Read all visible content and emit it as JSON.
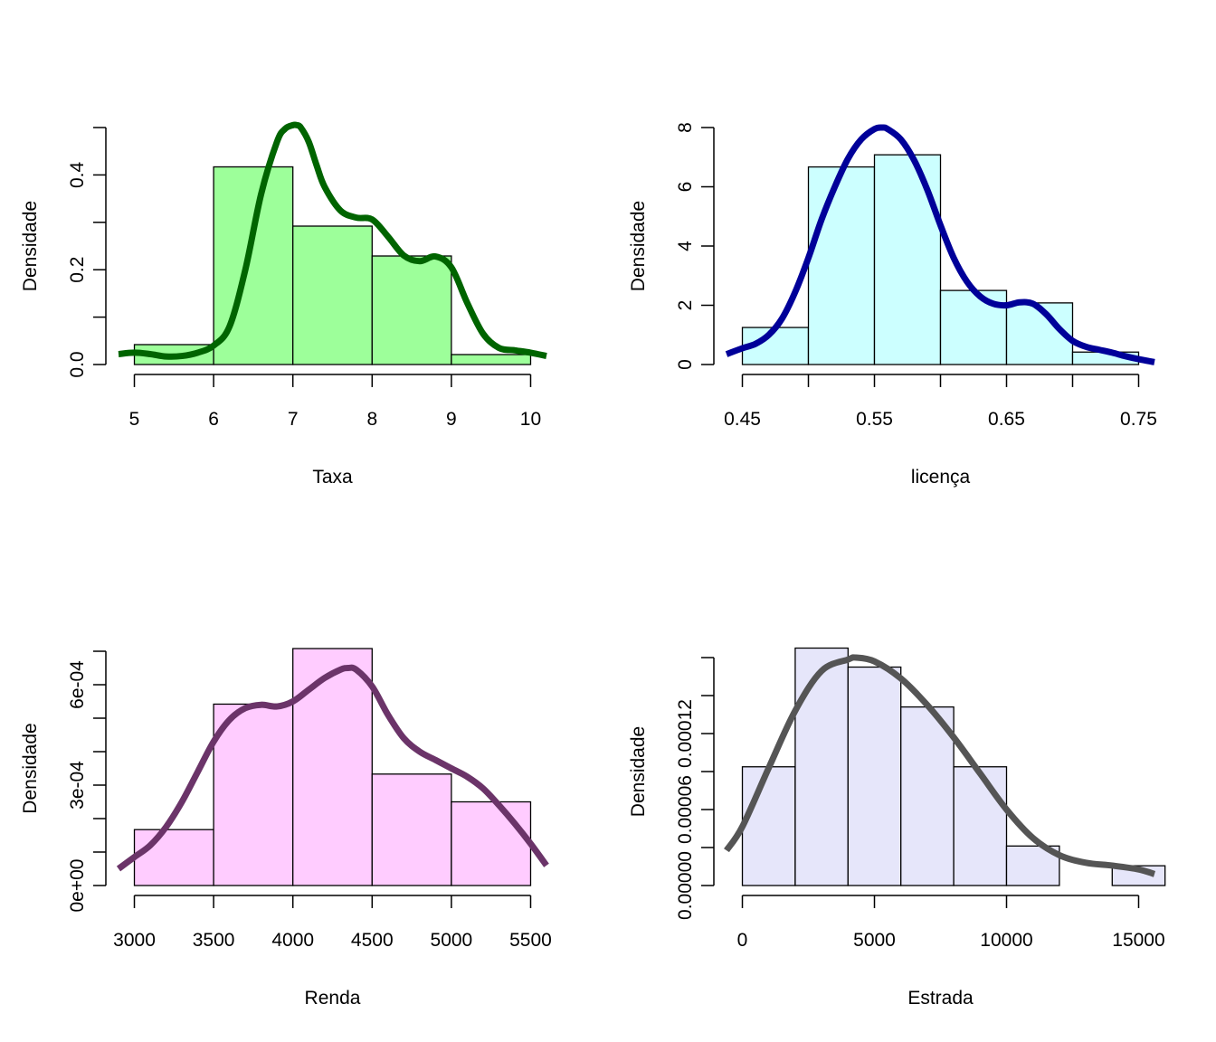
{
  "chart_data": [
    {
      "type": "bar",
      "subtype": "histogram-with-density",
      "xlabel": "Taxa",
      "ylabel": "Densidade",
      "bar_color": "#9dff9a",
      "line_color": "#006400",
      "xlim": [
        4.8,
        10.2
      ],
      "ylim": [
        0,
        0.5
      ],
      "x_ticks": [
        5,
        6,
        7,
        8,
        9,
        10
      ],
      "x_tick_labels": [
        "5",
        "6",
        "7",
        "8",
        "9",
        "10"
      ],
      "y_ticks": [
        0,
        0.1,
        0.2,
        0.3,
        0.4,
        0.5
      ],
      "y_tick_labels": [
        "0.0",
        "",
        "0.2",
        "",
        "0.4",
        ""
      ],
      "bins": [
        {
          "x0": 5,
          "x1": 6,
          "value": 0.042
        },
        {
          "x0": 6,
          "x1": 7,
          "value": 0.417
        },
        {
          "x0": 7,
          "x1": 8,
          "value": 0.292
        },
        {
          "x0": 8,
          "x1": 9,
          "value": 0.229
        },
        {
          "x0": 9,
          "x1": 10,
          "value": 0.021
        }
      ],
      "density": {
        "x": [
          4.8,
          5.0,
          5.2,
          5.4,
          5.6,
          5.8,
          6.0,
          6.2,
          6.4,
          6.6,
          6.8,
          6.9,
          7.0,
          7.05,
          7.1,
          7.2,
          7.3,
          7.4,
          7.6,
          7.8,
          8.0,
          8.2,
          8.4,
          8.6,
          8.8,
          9.0,
          9.2,
          9.4,
          9.6,
          9.8,
          10.0,
          10.2
        ],
        "y": [
          0.022,
          0.025,
          0.022,
          0.017,
          0.018,
          0.025,
          0.04,
          0.08,
          0.2,
          0.36,
          0.47,
          0.497,
          0.505,
          0.505,
          0.5,
          0.47,
          0.42,
          0.375,
          0.325,
          0.31,
          0.306,
          0.27,
          0.23,
          0.218,
          0.228,
          0.205,
          0.13,
          0.065,
          0.035,
          0.03,
          0.025,
          0.018
        ]
      }
    },
    {
      "type": "bar",
      "subtype": "histogram-with-density",
      "xlabel": "licença",
      "ylabel": "Densidade",
      "bar_color": "#ccffff",
      "line_color": "#000099",
      "xlim": [
        0.438,
        0.762
      ],
      "ylim": [
        0,
        8
      ],
      "x_ticks": [
        0.45,
        0.5,
        0.55,
        0.6,
        0.65,
        0.7,
        0.75
      ],
      "x_tick_labels": [
        "0.45",
        "",
        "0.55",
        "",
        "0.65",
        "",
        "0.75"
      ],
      "y_ticks": [
        0,
        2,
        4,
        6,
        8
      ],
      "y_tick_labels": [
        "0",
        "2",
        "4",
        "6",
        "8"
      ],
      "bins": [
        {
          "x0": 0.45,
          "x1": 0.5,
          "value": 1.25
        },
        {
          "x0": 0.5,
          "x1": 0.55,
          "value": 6.67
        },
        {
          "x0": 0.55,
          "x1": 0.6,
          "value": 7.08
        },
        {
          "x0": 0.6,
          "x1": 0.65,
          "value": 2.5
        },
        {
          "x0": 0.65,
          "x1": 0.7,
          "value": 2.08
        },
        {
          "x0": 0.7,
          "x1": 0.75,
          "value": 0.42
        }
      ],
      "density": {
        "x": [
          0.438,
          0.45,
          0.46,
          0.47,
          0.48,
          0.49,
          0.5,
          0.51,
          0.52,
          0.53,
          0.54,
          0.55,
          0.556,
          0.56,
          0.57,
          0.58,
          0.59,
          0.6,
          0.61,
          0.62,
          0.63,
          0.64,
          0.65,
          0.66,
          0.67,
          0.68,
          0.69,
          0.7,
          0.71,
          0.72,
          0.73,
          0.74,
          0.75,
          0.762
        ],
        "y": [
          0.35,
          0.55,
          0.7,
          1.0,
          1.55,
          2.45,
          3.6,
          4.9,
          6.0,
          6.95,
          7.6,
          7.95,
          8.0,
          7.95,
          7.6,
          6.9,
          5.9,
          4.7,
          3.6,
          2.8,
          2.3,
          2.05,
          2.0,
          2.1,
          2.05,
          1.7,
          1.2,
          0.8,
          0.6,
          0.5,
          0.4,
          0.28,
          0.18,
          0.08
        ]
      }
    },
    {
      "type": "bar",
      "subtype": "histogram-with-density",
      "xlabel": "Renda",
      "ylabel": "Densidade",
      "bar_color": "#ffccff",
      "line_color": "#6b3469",
      "xlim": [
        2900,
        5600
      ],
      "ylim": [
        0,
        0.0007
      ],
      "x_ticks": [
        3000,
        3500,
        4000,
        4500,
        5000,
        5500
      ],
      "x_tick_labels": [
        "3000",
        "3500",
        "4000",
        "4500",
        "5000",
        "5500"
      ],
      "y_ticks": [
        0,
        0.0001,
        0.0002,
        0.0003,
        0.0004,
        0.0005,
        0.0006,
        0.0007
      ],
      "y_tick_labels": [
        "0e+00",
        "",
        "",
        "3e-04",
        "",
        "",
        "6e-04",
        ""
      ],
      "bins": [
        {
          "x0": 3000,
          "x1": 3500,
          "value": 0.000167
        },
        {
          "x0": 3500,
          "x1": 4000,
          "value": 0.000542
        },
        {
          "x0": 4000,
          "x1": 4500,
          "value": 0.000708
        },
        {
          "x0": 4500,
          "x1": 5000,
          "value": 0.000333
        },
        {
          "x0": 5000,
          "x1": 5500,
          "value": 0.00025
        }
      ],
      "density": {
        "x": [
          2900,
          3000,
          3100,
          3200,
          3300,
          3400,
          3500,
          3600,
          3700,
          3800,
          3900,
          4000,
          4100,
          4200,
          4300,
          4350,
          4400,
          4500,
          4600,
          4700,
          4800,
          4900,
          5000,
          5100,
          5200,
          5300,
          5400,
          5500,
          5600
        ],
        "y": [
          5e-05,
          8.5e-05,
          0.00012,
          0.000175,
          0.00025,
          0.00034,
          0.00043,
          0.000495,
          0.00053,
          0.00054,
          0.000535,
          0.00055,
          0.000585,
          0.00062,
          0.000645,
          0.00065,
          0.000645,
          0.000595,
          0.00051,
          0.00044,
          0.0004,
          0.000375,
          0.00035,
          0.000325,
          0.00029,
          0.00024,
          0.000185,
          0.000125,
          6e-05
        ]
      }
    },
    {
      "type": "bar",
      "subtype": "histogram-with-density",
      "xlabel": "Estrada",
      "ylabel": "Densidade",
      "bar_color": "#e6e6fa",
      "line_color": "#555555",
      "xlim": [
        -600,
        15600
      ],
      "ylim": [
        0,
        0.00012
      ],
      "x_ticks": [
        0,
        5000,
        10000,
        15000
      ],
      "x_tick_labels": [
        "0",
        "5000",
        "10000",
        "15000"
      ],
      "y_ticks": [
        0,
        2e-05,
        4e-05,
        6e-05,
        8e-05,
        0.0001,
        0.00012
      ],
      "y_tick_labels": [
        "0.00000",
        "",
        "0.00006",
        "",
        "0.00012",
        "",
        ""
      ],
      "bins": [
        {
          "x0": 0,
          "x1": 2000,
          "value": 6.25e-05
        },
        {
          "x0": 2000,
          "x1": 4000,
          "value": 0.000125
        },
        {
          "x0": 4000,
          "x1": 6000,
          "value": 0.000115
        },
        {
          "x0": 6000,
          "x1": 8000,
          "value": 9.4e-05
        },
        {
          "x0": 8000,
          "x1": 10000,
          "value": 6.25e-05
        },
        {
          "x0": 10000,
          "x1": 12000,
          "value": 2.08e-05
        },
        {
          "x0": 12000,
          "x1": 14000,
          "value": 0
        },
        {
          "x0": 14000,
          "x1": 16000,
          "value": 1.04e-05
        }
      ],
      "density": {
        "x": [
          -600,
          0,
          1000,
          2000,
          3000,
          4000,
          4300,
          5000,
          6000,
          7000,
          8000,
          9000,
          10000,
          11000,
          12000,
          13000,
          14000,
          15000,
          15600
        ],
        "y": [
          1.85e-05,
          3.1e-05,
          6.2e-05,
          9.2e-05,
          0.000113,
          0.000119,
          0.00012,
          0.000118,
          0.000109,
          9.5e-05,
          7.8e-05,
          5.9e-05,
          4e-05,
          2.5e-05,
          1.6e-05,
          1.2e-05,
          1.05e-05,
          8.5e-06,
          6e-06
        ]
      }
    }
  ]
}
